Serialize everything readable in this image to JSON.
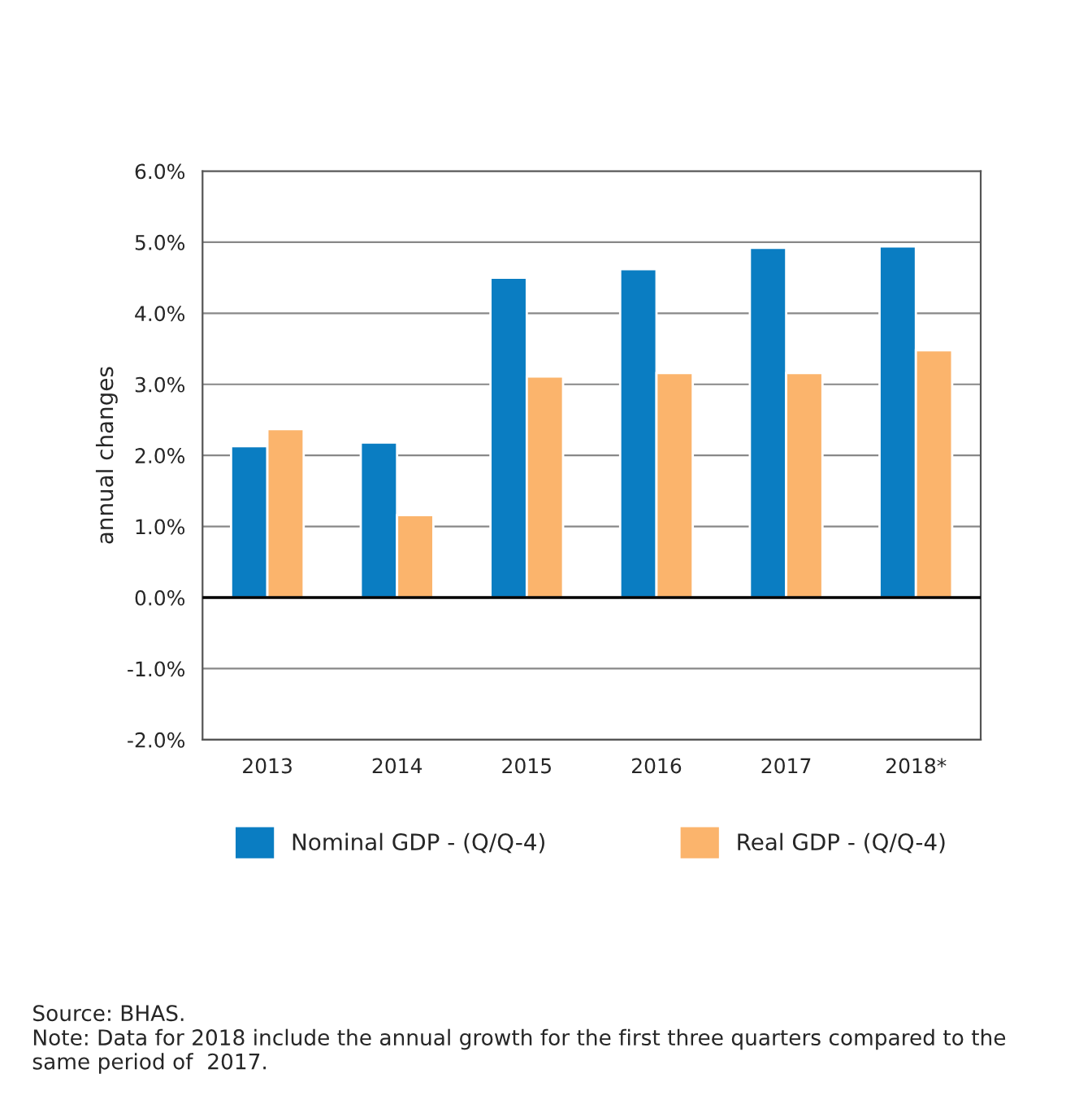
{
  "chart_data": {
    "type": "bar",
    "ylabel": "annual changes",
    "categories": [
      "2013",
      "2014",
      "2015",
      "2016",
      "2017",
      "2018*"
    ],
    "series": [
      {
        "name": "Nominal GDP - (Q/Q-4)",
        "color": "#0a7dc2",
        "values": [
          2.13,
          2.18,
          4.5,
          4.62,
          4.92,
          4.94
        ]
      },
      {
        "name": "Real GDP - (Q/Q-4)",
        "color": "#fbb46c",
        "values": [
          2.37,
          1.16,
          3.11,
          3.16,
          3.16,
          3.48
        ]
      }
    ],
    "ylim": [
      -2,
      6
    ],
    "yticks": [
      {
        "value": -2,
        "label": "-2.0%"
      },
      {
        "value": -1,
        "label": "-1.0%"
      },
      {
        "value": 0,
        "label": "0.0%"
      },
      {
        "value": 1,
        "label": "1.0%"
      },
      {
        "value": 2,
        "label": "2.0%"
      },
      {
        "value": 3,
        "label": "3.0%"
      },
      {
        "value": 4,
        "label": "4.0%"
      },
      {
        "value": 5,
        "label": "5.0%"
      },
      {
        "value": 6,
        "label": "6.0%"
      }
    ],
    "ref_lines": [
      {
        "axis": "y",
        "value": 0,
        "color": "#000000"
      }
    ],
    "grid": "y",
    "legend": "bottom",
    "annotations": [
      "Source: BHAS.",
      "Note: Data for 2018 include the annual growth for the first three quarters compared to the same period of  2017."
    ]
  }
}
